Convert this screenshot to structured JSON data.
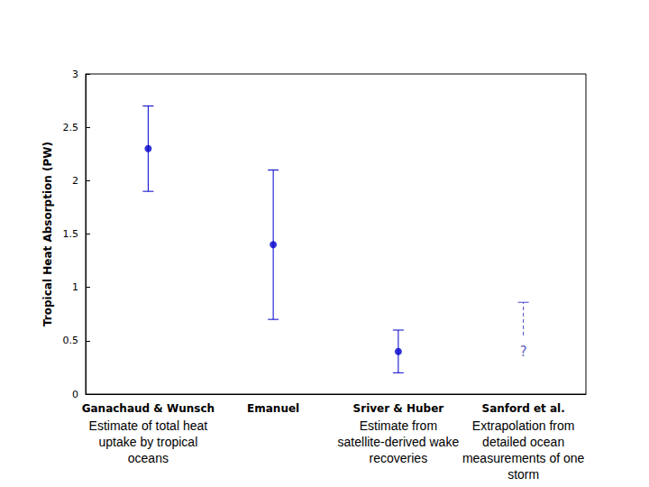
{
  "chart_data": {
    "type": "scatter",
    "y_label": "Tropical Heat Absorption (PW)",
    "categories": [
      "Ganachaud & Wunsch",
      "Emanuel",
      "Sriver & Huber",
      "Sanford et al."
    ],
    "category_notes": [
      "Estimate of total heat uptake by tropical oceans",
      null,
      "Estimate from satellite-derived wake recoveries",
      "Extrapolation from detailed ocean measurements of one storm"
    ],
    "series": [
      {
        "values": [
          2.3,
          1.4,
          0.4,
          null
        ],
        "error_low": [
          1.9,
          0.7,
          0.2,
          null
        ],
        "error_high": [
          2.7,
          2.1,
          0.6,
          null
        ],
        "color": "#0000cc",
        "marker": "circle",
        "line_style": "solid"
      },
      {
        "values": [
          null,
          null,
          null,
          null
        ],
        "error_low": [
          null,
          null,
          null,
          0.55
        ],
        "error_high": [
          null,
          null,
          null,
          0.86
        ],
        "color": "#4444cc",
        "line_style": "dashed"
      }
    ],
    "annotations": [
      {
        "text": "?",
        "category": "Sanford et al.",
        "y": 0.4,
        "color": "#3333aa"
      }
    ],
    "ylim": [
      0,
      3
    ],
    "yticks": [
      0,
      0.5,
      1,
      1.5,
      2,
      2.5,
      3
    ],
    "grid": false
  }
}
